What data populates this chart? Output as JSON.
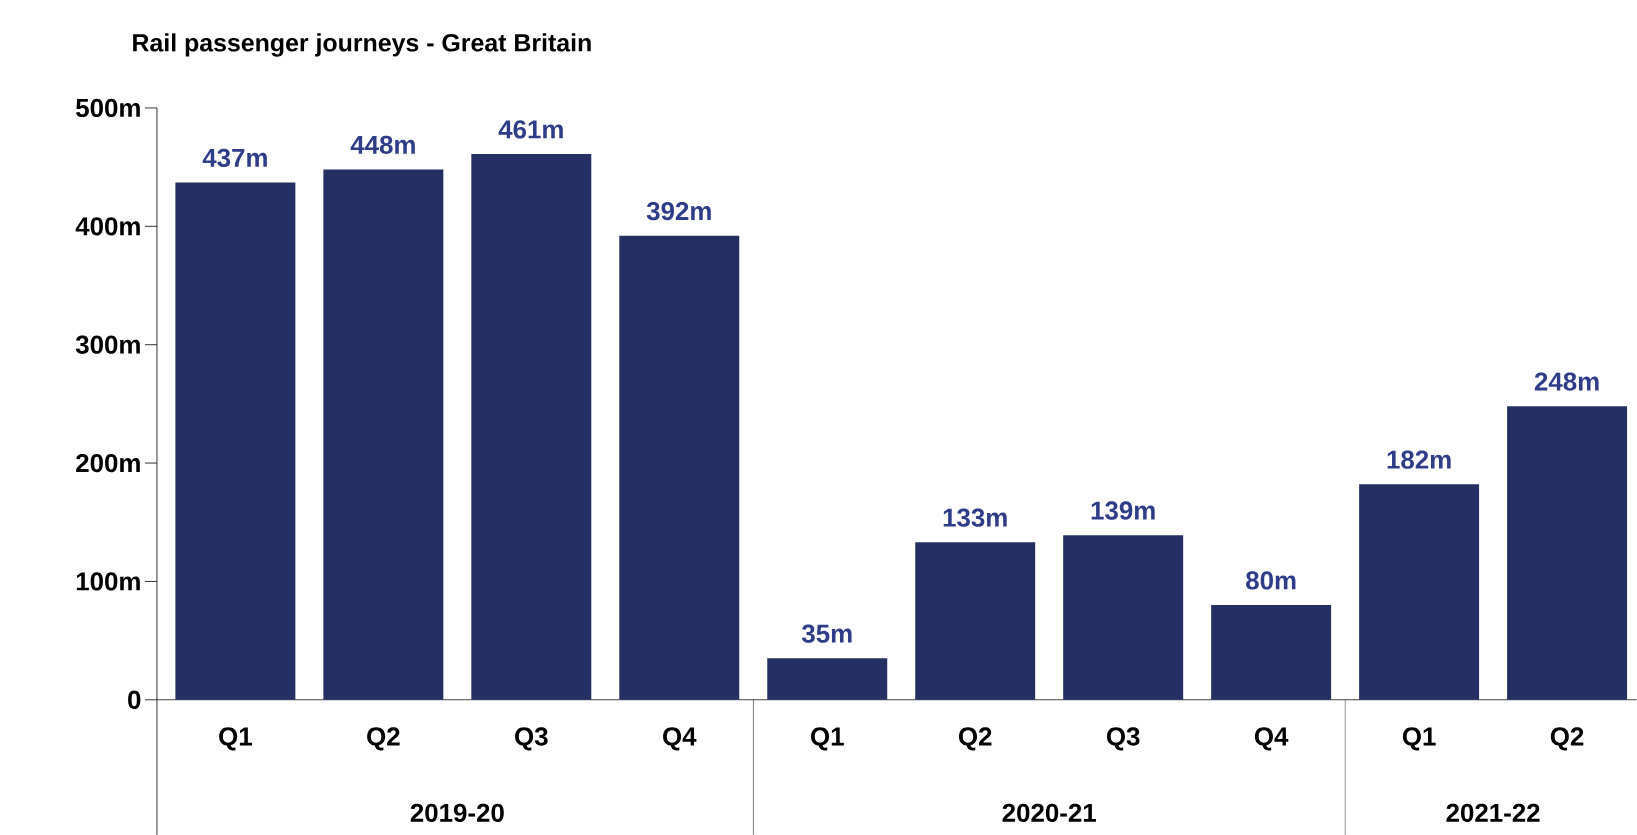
{
  "chart_data": {
    "type": "bar",
    "title": "Rail passenger journeys - Great Britain",
    "categories": [
      "Q1",
      "Q2",
      "Q3",
      "Q4",
      "Q1",
      "Q2",
      "Q3",
      "Q4",
      "Q1",
      "Q2"
    ],
    "values": [
      437,
      448,
      461,
      392,
      35,
      133,
      139,
      80,
      182,
      248
    ],
    "value_labels": [
      "437m",
      "448m",
      "461m",
      "392m",
      "35m",
      "133m",
      "139m",
      "80m",
      "182m",
      "248m"
    ],
    "color": "#243063",
    "ylim": [
      0,
      500
    ],
    "yticks": [
      0,
      {
        "value": 100,
        "label": "100m"
      },
      {
        "value": 200,
        "label": "200m"
      },
      {
        "value": 300,
        "label": "300m"
      },
      {
        "value": 400,
        "label": "400m"
      },
      {
        "value": 500,
        "label": "500m"
      }
    ],
    "annotations": [
      "2019-20",
      "2020-21",
      "2021-22"
    ],
    "grid": false
  }
}
